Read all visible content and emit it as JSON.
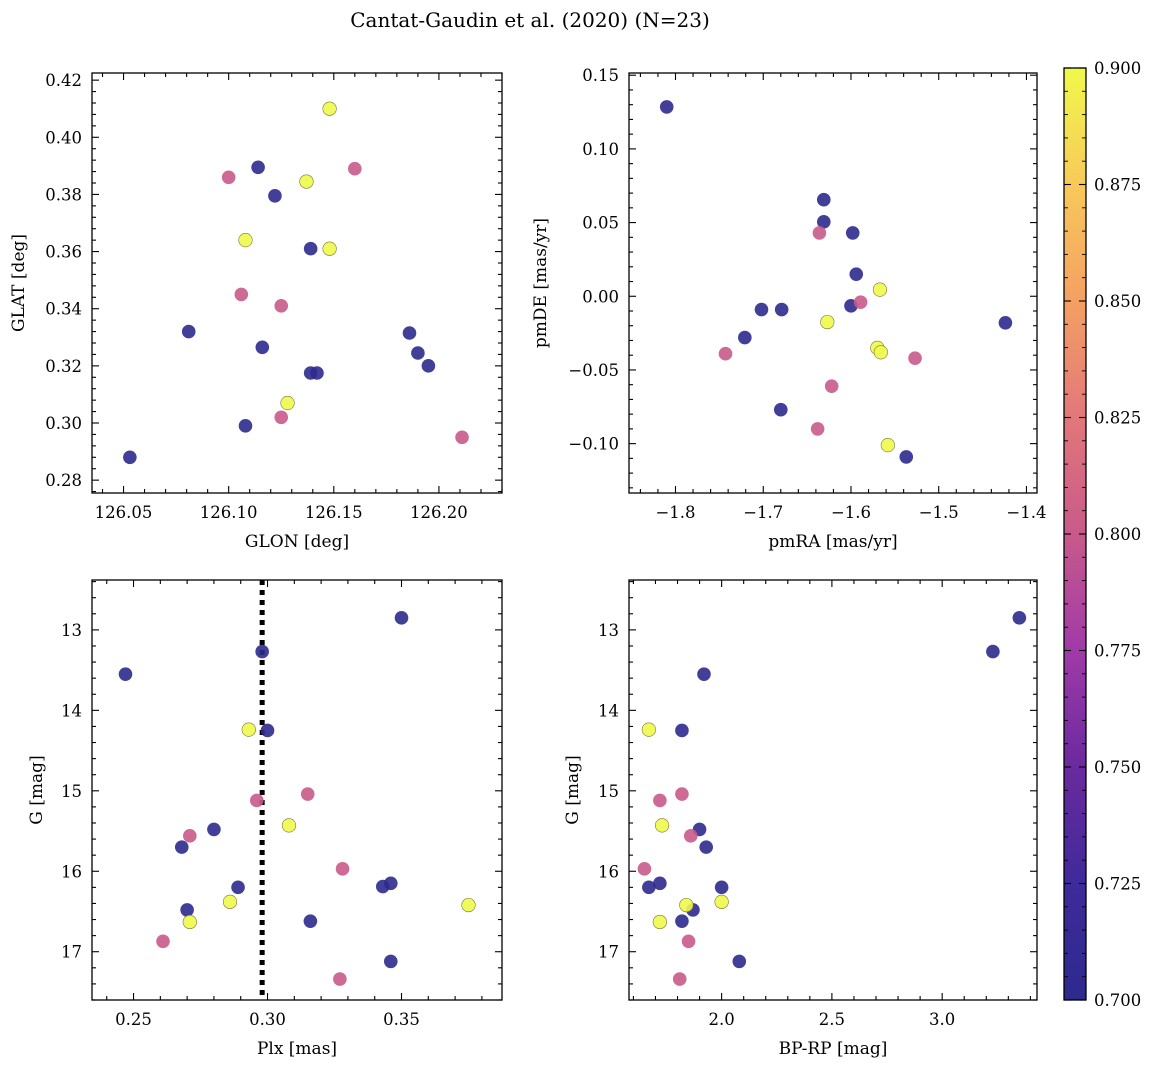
{
  "figure": {
    "title": "Cantat-Gaudin et al. (2020) (N=23)",
    "colorbar": {
      "min": 0.7,
      "max": 0.9,
      "ticks": [
        "0.700",
        "0.725",
        "0.750",
        "0.775",
        "0.800",
        "0.825",
        "0.850",
        "0.875",
        "0.900"
      ],
      "colors": [
        "#2d2a8e",
        "#3f2a9a",
        "#6a2a9e",
        "#a03aa8",
        "#c85a8a",
        "#e2777a",
        "#f4a063",
        "#f8c95a",
        "#f0f94a"
      ]
    }
  },
  "chart_data": [
    {
      "id": "sky",
      "type": "scatter",
      "xlabel": "GLON [deg]",
      "ylabel": "GLAT [deg]",
      "xlim": [
        126.035,
        126.23
      ],
      "ylim": [
        0.2755,
        0.4225
      ],
      "xticks": [
        126.05,
        126.1,
        126.15,
        126.2
      ],
      "xtick_labels": [
        "126.05",
        "126.10",
        "126.15",
        "126.20"
      ],
      "yticks": [
        0.28,
        0.3,
        0.32,
        0.34,
        0.36,
        0.38,
        0.4,
        0.42
      ],
      "ytick_labels": [
        "0.28",
        "0.30",
        "0.32",
        "0.34",
        "0.36",
        "0.38",
        "0.40",
        "0.42"
      ],
      "x": [
        126.053,
        126.081,
        126.108,
        126.116,
        126.114,
        126.122,
        126.139,
        126.139,
        126.142,
        126.186,
        126.19,
        126.195,
        126.1,
        126.106,
        126.125,
        126.125,
        126.16,
        126.211,
        126.148,
        126.137,
        126.108,
        126.148,
        126.128
      ],
      "y": [
        0.288,
        0.332,
        0.299,
        0.3265,
        0.3895,
        0.3795,
        0.361,
        0.3175,
        0.3175,
        0.3315,
        0.3245,
        0.32,
        0.386,
        0.345,
        0.341,
        0.302,
        0.389,
        0.295,
        0.41,
        0.3845,
        0.364,
        0.361,
        0.307
      ],
      "c": [
        0.7,
        0.7,
        0.7,
        0.7,
        0.7,
        0.7,
        0.7,
        0.7,
        0.7,
        0.7,
        0.7,
        0.7,
        0.8,
        0.8,
        0.8,
        0.8,
        0.8,
        0.8,
        0.9,
        0.9,
        0.9,
        0.9,
        0.9
      ]
    },
    {
      "id": "pm",
      "type": "scatter",
      "xlabel": "pmRA [mas/yr]",
      "ylabel": "pmDE [mas/yr]",
      "xlim": [
        -1.853,
        -1.388
      ],
      "ylim": [
        -0.1335,
        0.1515
      ],
      "xticks": [
        -1.8,
        -1.7,
        -1.6,
        -1.5,
        -1.4
      ],
      "xtick_labels": [
        "−1.8",
        "−1.7",
        "−1.6",
        "−1.5",
        "−1.4"
      ],
      "yticks": [
        -0.1,
        -0.05,
        0.0,
        0.05,
        0.1,
        0.15
      ],
      "ytick_labels": [
        "−0.10",
        "−0.05",
        "0.00",
        "0.05",
        "0.10",
        "0.15"
      ],
      "x": [
        -1.81,
        -1.631,
        -1.631,
        -1.598,
        -1.594,
        -1.6,
        -1.702,
        -1.679,
        -1.721,
        -1.68,
        -1.537,
        -1.424,
        -1.636,
        -1.589,
        -1.743,
        -1.527,
        -1.622,
        -1.638,
        -1.567,
        -1.627,
        -1.57,
        -1.566,
        -1.558
      ],
      "y": [
        0.1285,
        0.0655,
        0.0505,
        0.043,
        0.015,
        -0.0065,
        -0.009,
        -0.009,
        -0.028,
        -0.077,
        -0.109,
        -0.018,
        0.043,
        -0.004,
        -0.039,
        -0.042,
        -0.061,
        -0.09,
        0.0045,
        -0.0175,
        -0.035,
        -0.038,
        -0.101
      ],
      "c": [
        0.7,
        0.7,
        0.7,
        0.7,
        0.7,
        0.7,
        0.7,
        0.7,
        0.7,
        0.7,
        0.7,
        0.7,
        0.8,
        0.8,
        0.8,
        0.8,
        0.8,
        0.8,
        0.9,
        0.9,
        0.9,
        0.9,
        0.9
      ]
    },
    {
      "id": "cmd_plx",
      "type": "scatter",
      "xlabel": "Plx [mas]",
      "ylabel": "G [mag]",
      "xlim": [
        0.2345,
        0.3875
      ],
      "ylim": [
        17.6,
        12.38
      ],
      "xticks": [
        0.25,
        0.3,
        0.35
      ],
      "xtick_labels": [
        "0.25",
        "0.30",
        "0.35"
      ],
      "yticks": [
        13,
        14,
        15,
        16,
        17
      ],
      "ytick_labels": [
        "13",
        "14",
        "15",
        "16",
        "17"
      ],
      "vline": 0.298,
      "x": [
        0.247,
        0.298,
        0.35,
        0.3,
        0.28,
        0.268,
        0.289,
        0.27,
        0.316,
        0.343,
        0.346,
        0.346,
        0.271,
        0.296,
        0.315,
        0.328,
        0.261,
        0.327,
        0.293,
        0.308,
        0.286,
        0.271,
        0.375
      ],
      "y": [
        13.55,
        13.27,
        12.85,
        14.25,
        15.48,
        15.7,
        16.2,
        16.48,
        16.62,
        16.19,
        16.15,
        17.12,
        15.56,
        15.12,
        15.04,
        15.97,
        16.87,
        17.34,
        14.24,
        15.43,
        16.38,
        16.63,
        16.42
      ],
      "c": [
        0.7,
        0.7,
        0.7,
        0.7,
        0.7,
        0.7,
        0.7,
        0.7,
        0.7,
        0.7,
        0.7,
        0.7,
        0.8,
        0.8,
        0.8,
        0.8,
        0.8,
        0.8,
        0.9,
        0.9,
        0.9,
        0.9,
        0.9
      ]
    },
    {
      "id": "cmd_color",
      "type": "scatter",
      "xlabel": "BP-RP [mag]",
      "ylabel": "G [mag]",
      "xlim": [
        1.58,
        3.43
      ],
      "ylim": [
        17.6,
        12.38
      ],
      "xticks": [
        2.0,
        2.5,
        3.0
      ],
      "xtick_labels": [
        "2.0",
        "2.5",
        "3.0"
      ],
      "yticks": [
        13,
        14,
        15,
        16,
        17
      ],
      "ytick_labels": [
        "13",
        "14",
        "15",
        "16",
        "17"
      ],
      "x": [
        3.35,
        3.23,
        1.92,
        1.82,
        1.9,
        1.93,
        2.0,
        1.87,
        1.82,
        1.67,
        1.72,
        2.08,
        1.72,
        1.86,
        1.82,
        1.65,
        1.85,
        1.81,
        1.67,
        1.73,
        2.0,
        1.72,
        1.84
      ],
      "y": [
        12.85,
        13.27,
        13.55,
        14.25,
        15.48,
        15.7,
        16.2,
        16.48,
        16.62,
        16.2,
        16.15,
        17.12,
        15.12,
        15.56,
        15.04,
        15.97,
        16.87,
        17.34,
        14.24,
        15.43,
        16.38,
        16.63,
        16.42
      ],
      "c": [
        0.7,
        0.7,
        0.7,
        0.7,
        0.7,
        0.7,
        0.7,
        0.7,
        0.7,
        0.7,
        0.7,
        0.7,
        0.8,
        0.8,
        0.8,
        0.8,
        0.8,
        0.8,
        0.9,
        0.9,
        0.9,
        0.9,
        0.9
      ]
    }
  ]
}
